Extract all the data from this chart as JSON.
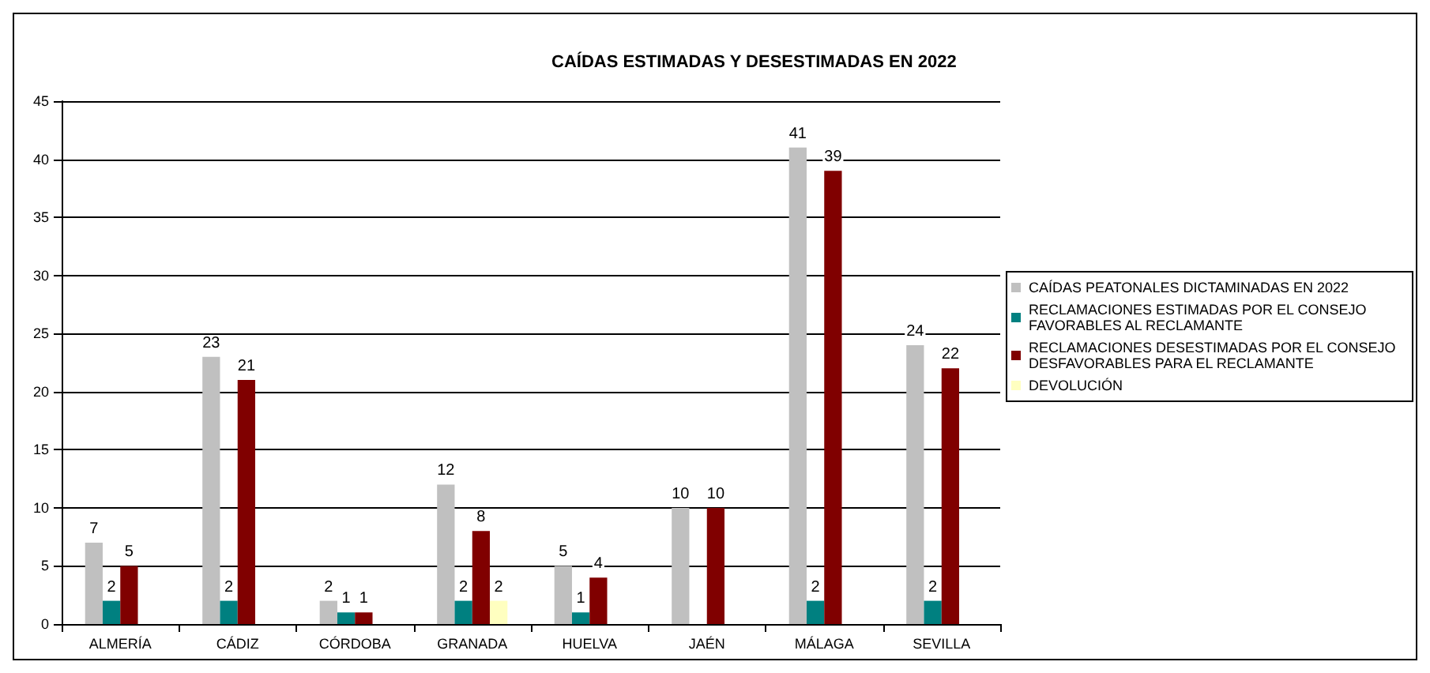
{
  "chart_data": {
    "type": "bar",
    "title": "CAÍDAS ESTIMADAS Y DESESTIMADAS EN 2022",
    "categories": [
      "ALMERÍA",
      "CÁDIZ",
      "CÓRDOBA",
      "GRANADA",
      "HUELVA",
      "JAÉN",
      "MÁLAGA",
      "SEVILLA"
    ],
    "series": [
      {
        "name": "CAÍDAS PEATONALES DICTAMINADAS EN 2022",
        "color": "#c0c0c0",
        "values": [
          7,
          23,
          2,
          12,
          5,
          10,
          41,
          24
        ]
      },
      {
        "name": "RECLAMACIONES ESTIMADAS POR EL CONSEJO FAVORABLES AL RECLAMANTE",
        "color": "#008080",
        "values": [
          2,
          2,
          1,
          2,
          1,
          null,
          2,
          2
        ]
      },
      {
        "name": "RECLAMACIONES DESESTIMADAS POR EL CONSEJO DESFAVORABLES PARA EL RECLAMANTE",
        "color": "#800000",
        "values": [
          5,
          21,
          1,
          8,
          4,
          10,
          39,
          22
        ]
      },
      {
        "name": "DEVOLUCIÓN",
        "color": "#ffffc0",
        "values": [
          null,
          null,
          null,
          2,
          null,
          null,
          null,
          null
        ]
      }
    ],
    "ylim": [
      0,
      45
    ],
    "yticks": [
      0,
      5,
      10,
      15,
      20,
      25,
      30,
      35,
      40,
      45
    ],
    "grid": "y",
    "legend": "right",
    "data_labels": true
  }
}
